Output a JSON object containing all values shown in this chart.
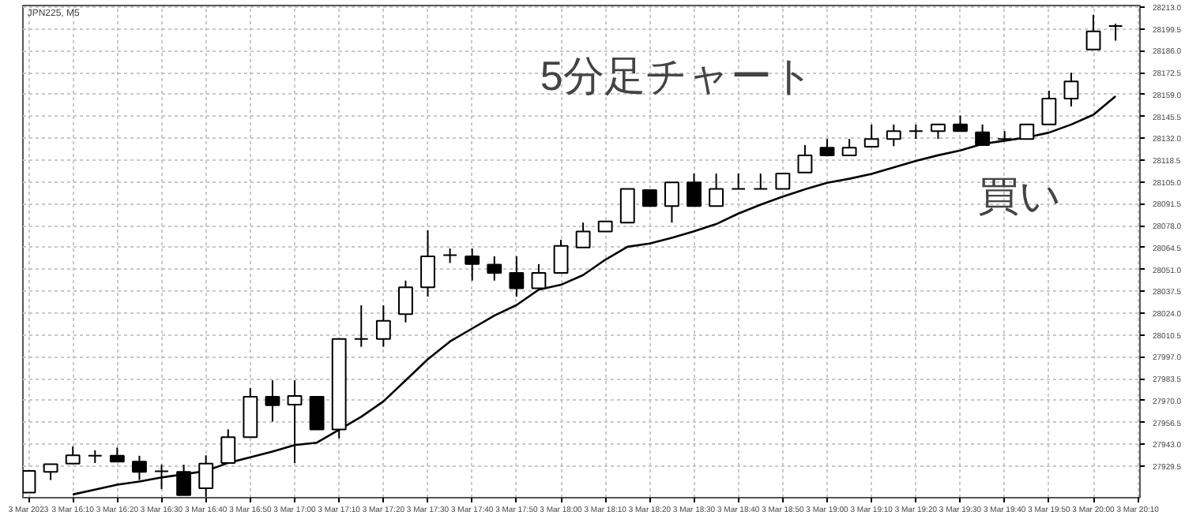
{
  "chart_data": {
    "type": "candlestick",
    "title": "JPN225, M5",
    "annotations": [
      "5分足チャート",
      "買い"
    ],
    "grid": true,
    "categories": [
      "3 Mar 2023",
      null,
      "3 Mar 16:10",
      null,
      "3 Mar 16:20",
      null,
      "3 Mar 16:30",
      null,
      "3 Mar 16:40",
      null,
      "3 Mar 16:50",
      null,
      "3 Mar 17:00",
      null,
      "3 Mar 17:10",
      null,
      "3 Mar 17:20",
      null,
      "3 Mar 17:30",
      null,
      "3 Mar 17:40",
      null,
      "3 Mar 17:50",
      null,
      "3 Mar 18:00",
      null,
      "3 Mar 18:10",
      null,
      "3 Mar 18:20",
      null,
      "3 Mar 18:30",
      null,
      "3 Mar 18:40",
      null,
      "3 Mar 18:50",
      null,
      "3 Mar 19:00",
      null,
      "3 Mar 19:10",
      null,
      "3 Mar 19:20",
      null,
      "3 Mar 19:30",
      null,
      "3 Mar 19:40",
      null,
      "3 Mar 19:50",
      null,
      "3 Mar 20:00",
      null,
      "3 Mar 20:10"
    ],
    "ohlc": [
      [
        27913.2,
        27926.6,
        27913.2,
        27926.6
      ],
      [
        27925.9,
        27930.7,
        27920.9,
        27930.7
      ],
      [
        27931.1,
        27941.6,
        27931.1,
        27936.2
      ],
      [
        27935.9,
        27939.3,
        27931.4,
        27935.9
      ],
      [
        27935.9,
        27941.0,
        27932.3,
        27932.3
      ],
      [
        27932.3,
        27935.9,
        27920.9,
        27925.9
      ],
      [
        27926.3,
        27930.4,
        27915.4,
        27926.3
      ],
      [
        27925.9,
        27930.4,
        27911.6,
        27911.6
      ],
      [
        27915.8,
        27936.2,
        27910.6,
        27931.1
      ],
      [
        27931.4,
        27952.2,
        27931.4,
        27947.4
      ],
      [
        27947.4,
        27977.7,
        27947.4,
        27972.3
      ],
      [
        27972.3,
        27982.5,
        27957.0,
        27967.1
      ],
      [
        27967.5,
        27982.5,
        27931.4,
        27972.9
      ],
      [
        27972.3,
        27972.3,
        27952.2,
        27952.2
      ],
      [
        27952.2,
        28008.0,
        27946.7,
        28008.0
      ],
      [
        28008.0,
        28028.8,
        28003.2,
        28008.0
      ],
      [
        28008.0,
        28028.8,
        28003.2,
        28019.2
      ],
      [
        28023.4,
        28044.1,
        28018.3,
        28039.9
      ],
      [
        28039.9,
        28075.1,
        28034.2,
        28059.1
      ],
      [
        28059.8,
        28063.9,
        28055.0,
        28059.8
      ],
      [
        28059.1,
        28063.9,
        28044.1,
        28054.3
      ],
      [
        28054.0,
        28059.1,
        28044.1,
        28048.9
      ],
      [
        28048.9,
        28059.1,
        28034.2,
        28039.4
      ],
      [
        28039.4,
        28054.3,
        28039.4,
        28048.9
      ],
      [
        28048.9,
        28069.3,
        28048.9,
        28065.5
      ],
      [
        28064.6,
        28079.9,
        28064.6,
        28074.4
      ],
      [
        28074.4,
        28080.6,
        28074.4,
        28080.6
      ],
      [
        28079.9,
        28100.7,
        28079.9,
        28100.7
      ],
      [
        28100.0,
        28100.0,
        28090.1,
        28090.1
      ],
      [
        28090.1,
        28104.8,
        28079.9,
        28104.8
      ],
      [
        28104.8,
        28110.2,
        28090.1,
        28090.1
      ],
      [
        28090.1,
        28110.2,
        28090.1,
        28100.7
      ],
      [
        28100.7,
        28110.2,
        28100.7,
        28100.7
      ],
      [
        28100.7,
        28110.2,
        28100.7,
        28100.7
      ],
      [
        28100.7,
        28110.2,
        28100.7,
        28110.2
      ],
      [
        28110.8,
        28127.8,
        28110.8,
        28121.4
      ],
      [
        28126.2,
        28131.6,
        28121.4,
        28121.4
      ],
      [
        28121.4,
        28131.6,
        28121.4,
        28126.2
      ],
      [
        28126.8,
        28140.5,
        28126.8,
        28131.6
      ],
      [
        28131.6,
        28140.5,
        28127.1,
        28136.4
      ],
      [
        28136.4,
        28140.5,
        28131.6,
        28136.4
      ],
      [
        28136.4,
        28140.5,
        28131.6,
        28140.5
      ],
      [
        28140.5,
        28146.0,
        28136.4,
        28136.4
      ],
      [
        28135.7,
        28140.5,
        28127.8,
        28127.8
      ],
      [
        28131.6,
        28136.4,
        28131.6,
        28131.6
      ],
      [
        28131.6,
        28140.5,
        28131.6,
        28140.5
      ],
      [
        28140.5,
        28161.3,
        28140.5,
        28156.5
      ],
      [
        28156.5,
        28172.5,
        28151.7,
        28167.1
      ],
      [
        28186.9,
        28208.3,
        28186.9,
        28198.0
      ],
      [
        28201.3,
        28202.8,
        28192.3,
        28201.3
      ],
      null
    ],
    "series": [
      {
        "type": "line",
        "color": "#000000",
        "values": [
          null,
          null,
          27912,
          27915,
          27918,
          27920,
          27922.5,
          27924.5,
          27926.5,
          27931.5,
          27935,
          27938.5,
          27942.5,
          27944,
          27952,
          27960,
          27969.5,
          27982.5,
          27995.5,
          28006.5,
          28014.5,
          28022.5,
          28029,
          28038.5,
          28041.5,
          28047.5,
          28057,
          28065,
          28067,
          28070.5,
          28074.5,
          28079,
          28085.5,
          28091,
          28096,
          28100.5,
          28104.5,
          28107,
          28110,
          28114,
          28118,
          28121.5,
          28124.5,
          28128.5,
          28130.5,
          28132.5,
          28135.5,
          28140.5,
          28146.5,
          28158,
          null
        ]
      }
    ],
    "ylim": [
      27910,
      28214
    ],
    "yticks": [
      27929.5,
      {
        "value": 27943,
        "label": "27943.0"
      },
      27956.5,
      {
        "value": 27970,
        "label": "27970.0"
      },
      27983.5,
      {
        "value": 27997,
        "label": "27997.0"
      },
      28010.5,
      {
        "value": 28024,
        "label": "28024.0"
      },
      28037.5,
      {
        "value": 28051,
        "label": "28051.0"
      },
      28064.5,
      {
        "value": 28078,
        "label": "28078.0"
      },
      28091.5,
      {
        "value": 28105,
        "label": "28105.0"
      },
      28118.5,
      {
        "value": 28132,
        "label": "28132.0"
      },
      28145.5,
      {
        "value": 28159,
        "label": "28159.0"
      },
      28172.5,
      {
        "value": 28186,
        "label": "28186.0"
      },
      28199.5,
      {
        "value": 28213,
        "label": "28213.0"
      }
    ]
  }
}
